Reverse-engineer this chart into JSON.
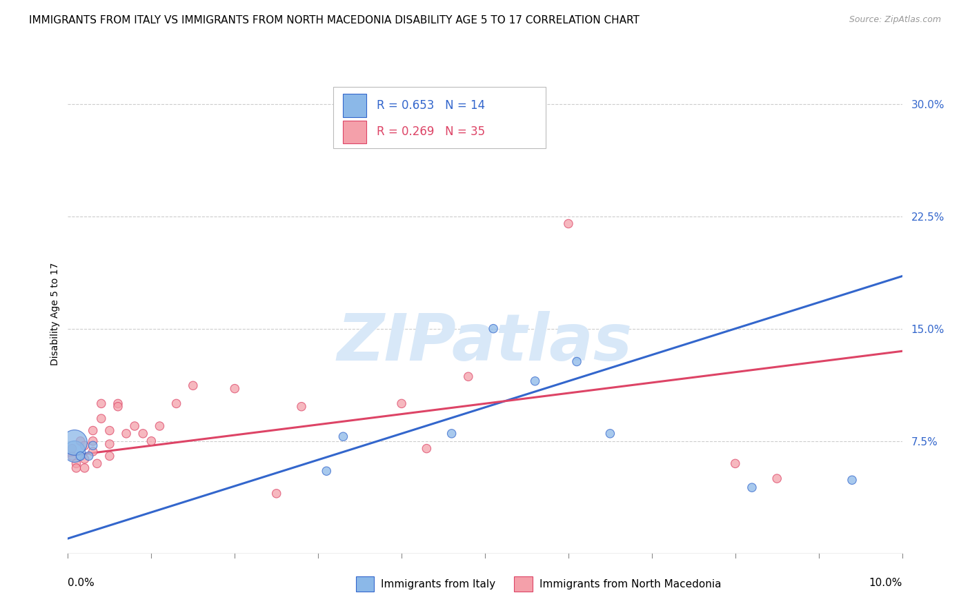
{
  "title": "IMMIGRANTS FROM ITALY VS IMMIGRANTS FROM NORTH MACEDONIA DISABILITY AGE 5 TO 17 CORRELATION CHART",
  "source": "Source: ZipAtlas.com",
  "ylabel": "Disability Age 5 to 17",
  "yticks": [
    0.0,
    0.075,
    0.15,
    0.225,
    0.3
  ],
  "ytick_labels": [
    "",
    "7.5%",
    "15.0%",
    "22.5%",
    "30.0%"
  ],
  "xlim": [
    0.0,
    0.1
  ],
  "ylim": [
    0.0,
    0.32
  ],
  "color_italy": "#8BB8E8",
  "color_mac": "#F4A0AA",
  "color_italy_line": "#3366CC",
  "color_mac_line": "#DD4466",
  "watermark_text": "ZIPatlas",
  "italy_x": [
    0.0008,
    0.0008,
    0.0015,
    0.0025,
    0.003,
    0.031,
    0.033,
    0.046,
    0.051,
    0.056,
    0.061,
    0.065,
    0.082,
    0.094
  ],
  "italy_y": [
    0.068,
    0.074,
    0.065,
    0.065,
    0.072,
    0.055,
    0.078,
    0.08,
    0.15,
    0.115,
    0.128,
    0.08,
    0.044,
    0.049
  ],
  "italy_size": [
    500,
    700,
    80,
    80,
    80,
    80,
    80,
    80,
    80,
    80,
    80,
    80,
    80,
    80
  ],
  "mac_x": [
    0.0005,
    0.0005,
    0.001,
    0.001,
    0.0015,
    0.002,
    0.002,
    0.002,
    0.003,
    0.003,
    0.003,
    0.0035,
    0.004,
    0.004,
    0.005,
    0.005,
    0.005,
    0.006,
    0.006,
    0.007,
    0.008,
    0.009,
    0.01,
    0.011,
    0.013,
    0.015,
    0.02,
    0.025,
    0.028,
    0.04,
    0.043,
    0.048,
    0.06,
    0.08,
    0.085
  ],
  "mac_y": [
    0.065,
    0.07,
    0.06,
    0.057,
    0.075,
    0.072,
    0.063,
    0.057,
    0.082,
    0.075,
    0.068,
    0.06,
    0.1,
    0.09,
    0.082,
    0.073,
    0.065,
    0.1,
    0.098,
    0.08,
    0.085,
    0.08,
    0.075,
    0.085,
    0.1,
    0.112,
    0.11,
    0.04,
    0.098,
    0.1,
    0.07,
    0.118,
    0.22,
    0.06,
    0.05
  ],
  "mac_size": [
    80,
    80,
    80,
    80,
    80,
    80,
    80,
    80,
    80,
    80,
    80,
    80,
    80,
    80,
    80,
    80,
    80,
    80,
    80,
    80,
    80,
    80,
    80,
    80,
    80,
    80,
    80,
    80,
    80,
    80,
    80,
    80,
    80,
    80,
    80
  ],
  "italy_line_x": [
    0.0,
    0.1
  ],
  "italy_line_y": [
    0.01,
    0.185
  ],
  "mac_line_x": [
    0.0,
    0.1
  ],
  "mac_line_y": [
    0.065,
    0.135
  ],
  "grid_color": "#CCCCCC",
  "title_fontsize": 11,
  "axis_label_fontsize": 10,
  "tick_fontsize": 11,
  "legend_r_italy": "R = 0.653",
  "legend_n_italy": "N = 14",
  "legend_r_mac": "R = 0.269",
  "legend_n_mac": "N = 35"
}
